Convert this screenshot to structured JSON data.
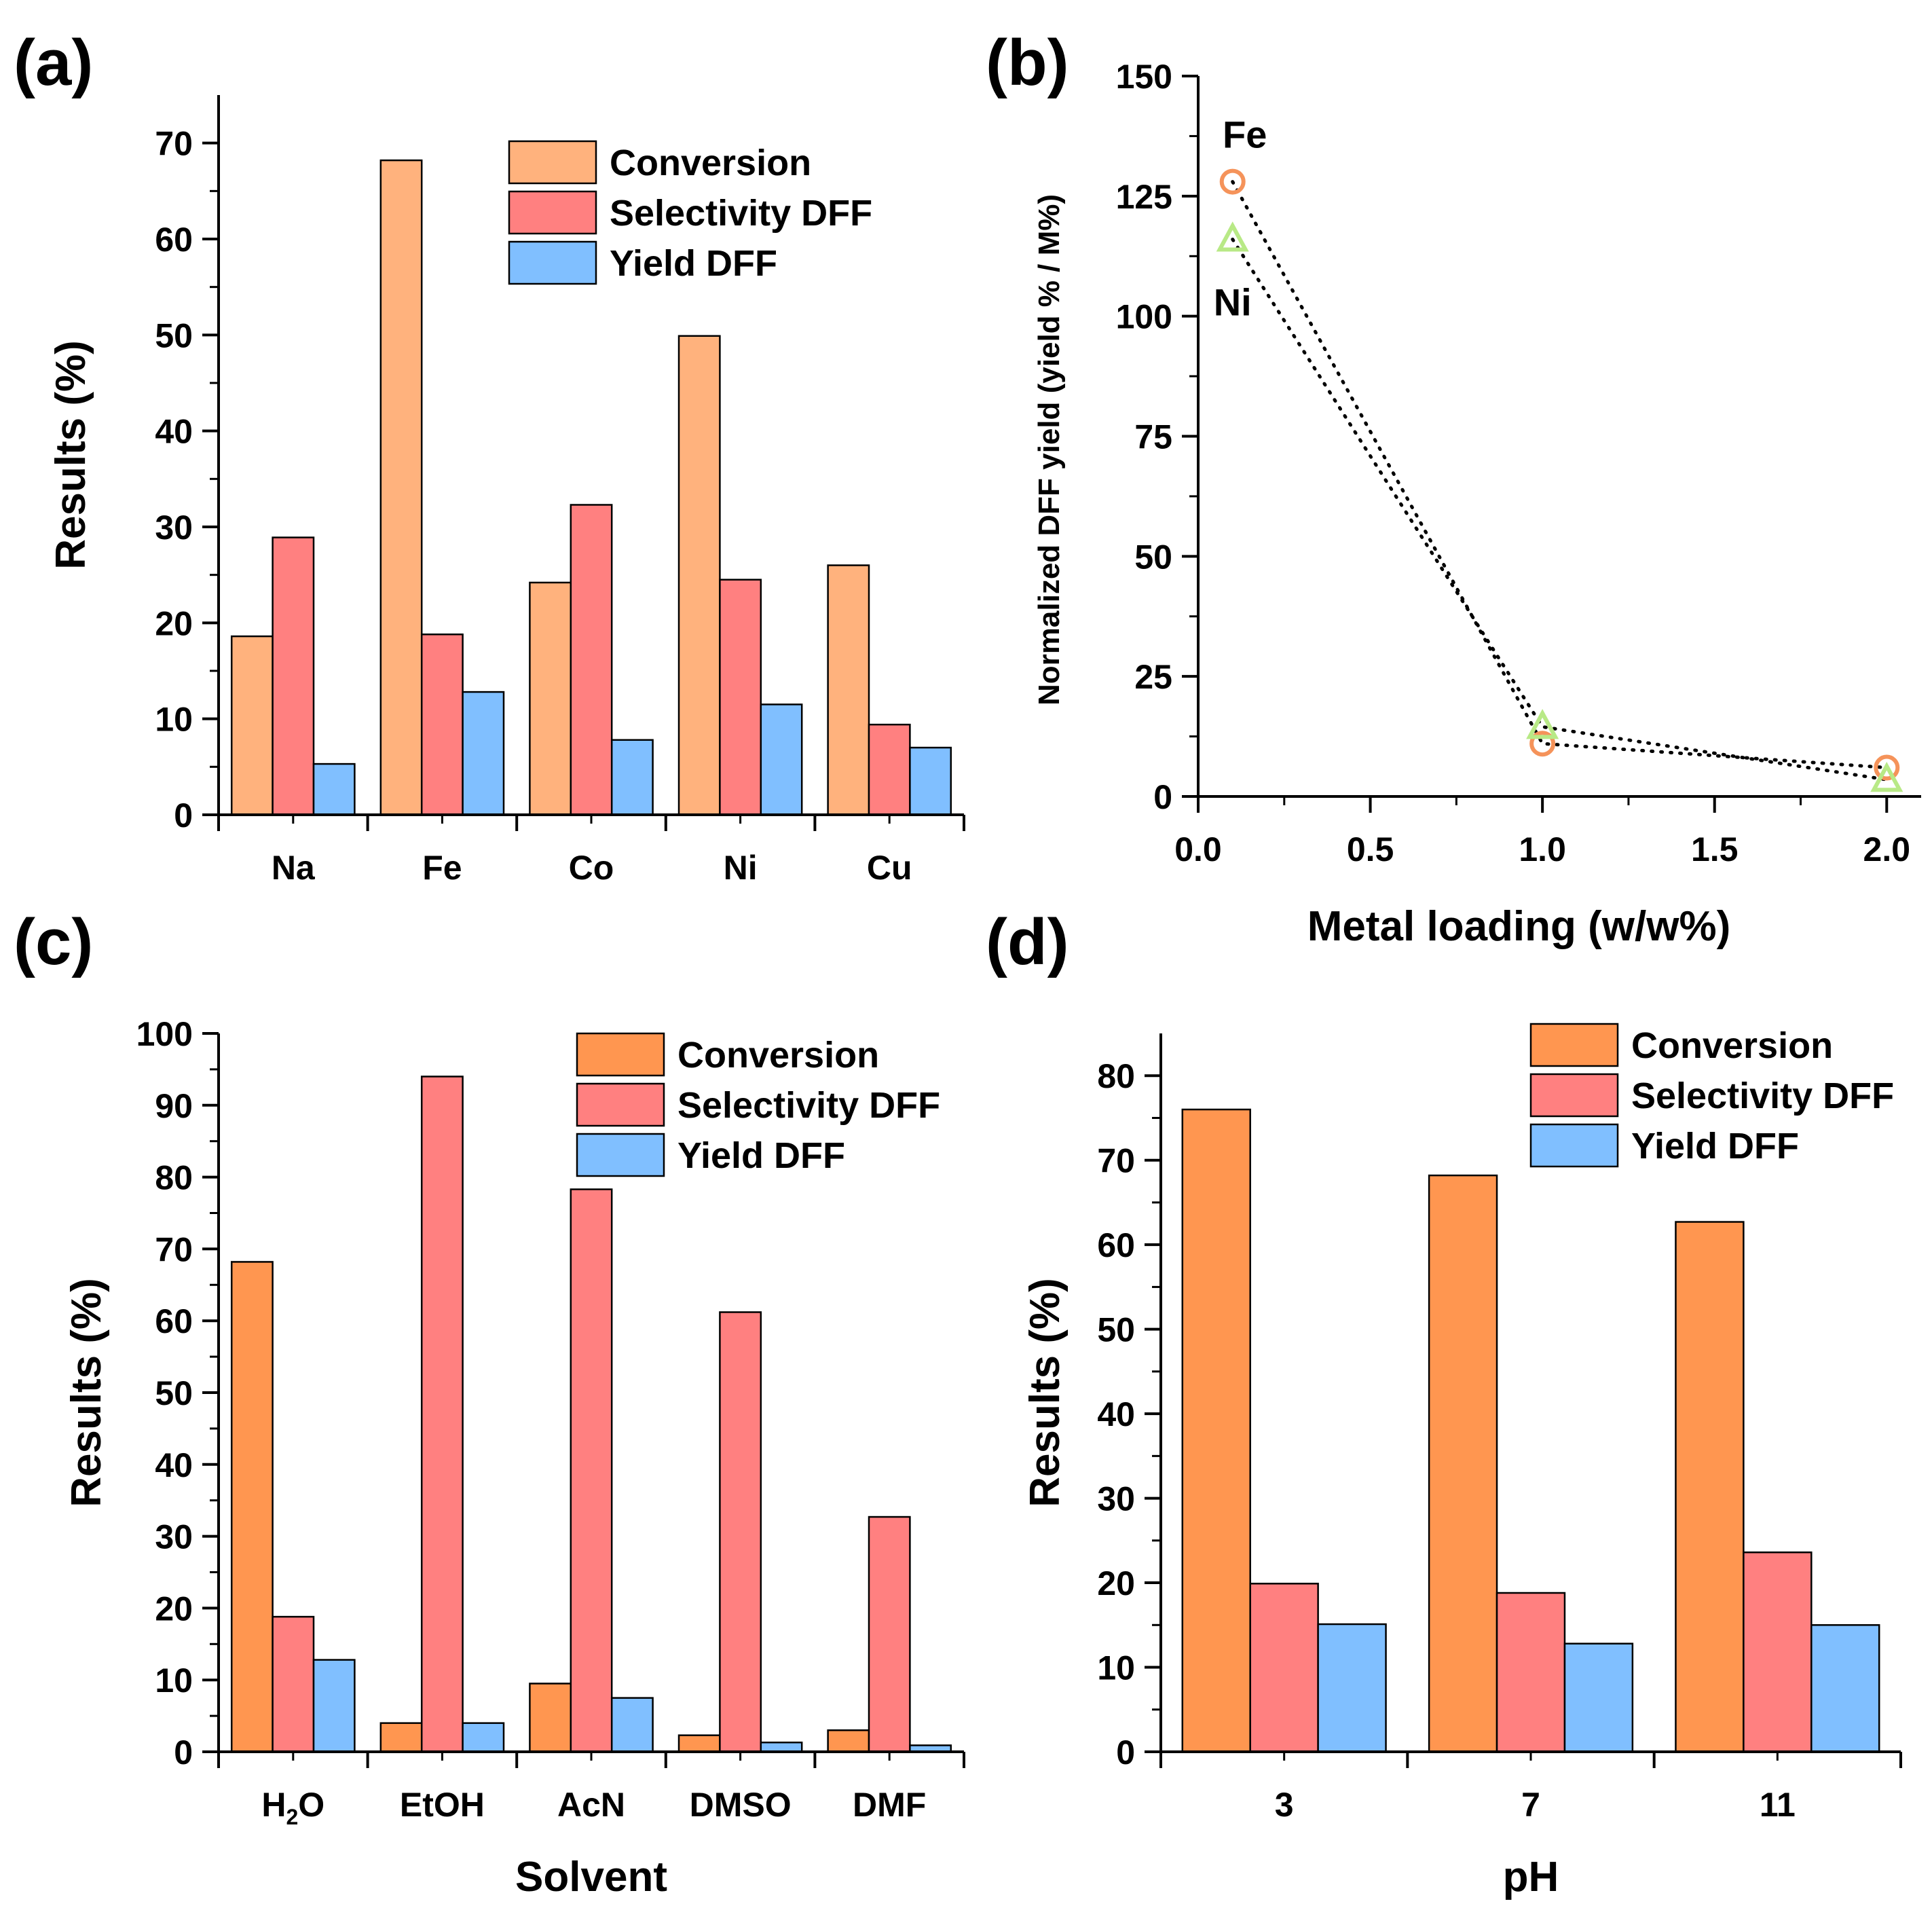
{
  "colors": {
    "conversion_a": "#FFB27D",
    "conversion": "#FF9650",
    "selectivity": "#FF8080",
    "yield": "#80BFFF",
    "fe_marker": "#F5935A",
    "ni_marker": "#B8E986",
    "axis": "#000000"
  },
  "chart_data": [
    {
      "id": "a",
      "panel_label": "(a)",
      "type": "bar",
      "title": "",
      "xlabel": "",
      "ylabel": "Results (%)",
      "ylim": [
        0,
        75
      ],
      "yticks": [
        0,
        10,
        20,
        30,
        40,
        50,
        60,
        70
      ],
      "categories": [
        "Na",
        "Fe",
        "Co",
        "Ni",
        "Cu"
      ],
      "legend_position": "top-right",
      "series": [
        {
          "name": "Conversion",
          "color_key": "conversion_a",
          "values": [
            18.6,
            68.2,
            24.2,
            49.9,
            26.0
          ]
        },
        {
          "name": "Selectivity DFF",
          "color_key": "selectivity",
          "values": [
            28.9,
            18.8,
            32.3,
            24.5,
            9.4
          ]
        },
        {
          "name": "Yield DFF",
          "color_key": "yield",
          "values": [
            5.3,
            12.8,
            7.8,
            11.5,
            7.0
          ]
        }
      ]
    },
    {
      "id": "b",
      "panel_label": "(b)",
      "type": "scatter",
      "title": "",
      "xlabel": "Metal loading (w/w%)",
      "ylabel": "Normalized DFF yield (yield % / M%)",
      "xlim": [
        0,
        2.1
      ],
      "ylim": [
        0,
        150
      ],
      "xticks": [
        0.0,
        0.5,
        1.0,
        1.5,
        2.0
      ],
      "xtick_labels": [
        "0.0",
        "0.5",
        "1.0",
        "1.5",
        "2.0"
      ],
      "yticks": [
        0,
        25,
        50,
        75,
        100,
        125,
        150
      ],
      "series": [
        {
          "name": "Fe",
          "marker": "circle",
          "color_key": "fe_marker",
          "x": [
            0.1,
            1.0,
            2.0
          ],
          "y": [
            128,
            11,
            6
          ]
        },
        {
          "name": "Ni",
          "marker": "triangle",
          "color_key": "ni_marker",
          "x": [
            0.1,
            1.0,
            2.0
          ],
          "y": [
            116,
            14.5,
            3.5
          ]
        }
      ],
      "annotations": [
        {
          "text": "Fe",
          "series": "Fe"
        },
        {
          "text": "Ni",
          "series": "Ni"
        }
      ]
    },
    {
      "id": "c",
      "panel_label": "(c)",
      "type": "bar",
      "title": "",
      "xlabel": "Solvent",
      "ylabel": "Results (%)",
      "ylim": [
        0,
        100
      ],
      "yticks": [
        0,
        10,
        20,
        30,
        40,
        50,
        60,
        70,
        80,
        90,
        100
      ],
      "categories": [
        "H2O",
        "EtOH",
        "AcN",
        "DMSO",
        "DMF"
      ],
      "legend_position": "top-right",
      "series": [
        {
          "name": "Conversion",
          "color_key": "conversion",
          "values": [
            68.2,
            4.0,
            9.5,
            2.3,
            3.0
          ]
        },
        {
          "name": "Selectivity DFF",
          "color_key": "selectivity",
          "values": [
            18.8,
            94.0,
            78.3,
            61.2,
            32.7
          ]
        },
        {
          "name": "Yield DFF",
          "color_key": "yield",
          "values": [
            12.8,
            4.0,
            7.5,
            1.3,
            0.9
          ]
        }
      ]
    },
    {
      "id": "d",
      "panel_label": "(d)",
      "type": "bar",
      "title": "",
      "xlabel": "pH",
      "ylabel": "Results (%)",
      "ylim": [
        0,
        85
      ],
      "yticks": [
        0,
        10,
        20,
        30,
        40,
        50,
        60,
        70,
        80
      ],
      "categories": [
        "3",
        "7",
        "11"
      ],
      "legend_position": "top-right",
      "series": [
        {
          "name": "Conversion",
          "color_key": "conversion",
          "values": [
            76.0,
            68.2,
            62.7
          ]
        },
        {
          "name": "Selectivity DFF",
          "color_key": "selectivity",
          "values": [
            19.9,
            18.8,
            23.6
          ]
        },
        {
          "name": "Yield DFF",
          "color_key": "yield",
          "values": [
            15.1,
            12.8,
            15.0
          ]
        }
      ]
    }
  ]
}
